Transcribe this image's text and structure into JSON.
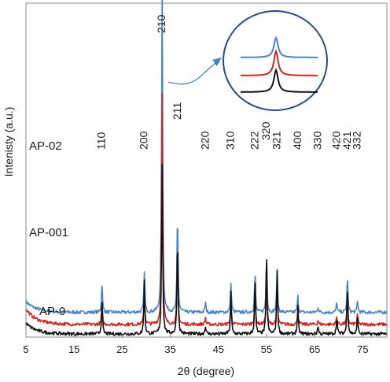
{
  "chart_data": {
    "type": "line",
    "xlabel": "2θ (degree)",
    "ylabel": "Intenisty (a.u.)",
    "xlim": [
      5,
      80
    ],
    "x_ticks": [
      5,
      15,
      25,
      35,
      45,
      55,
      65,
      75
    ],
    "series": [
      {
        "name": "AP-02",
        "color": "#4a86c5",
        "baseline": 0.78,
        "peaks": [
          [
            20.8,
            1.1
          ],
          [
            29.6,
            1.5
          ],
          [
            33.3,
            12.5
          ],
          [
            36.5,
            3.7
          ],
          [
            42.3,
            0.35
          ],
          [
            47.6,
            1.1
          ],
          [
            52.6,
            1.4
          ],
          [
            55.0,
            2.0
          ],
          [
            57.2,
            1.6
          ],
          [
            61.5,
            0.6
          ],
          [
            65.7,
            0.2
          ],
          [
            69.6,
            0.35
          ],
          [
            71.8,
            1.3
          ],
          [
            73.9,
            0.4
          ]
        ]
      },
      {
        "name": "AP-001",
        "color": "#cc2a22",
        "baseline": 0.345,
        "peaks": [
          [
            20.8,
            0.65
          ],
          [
            29.6,
            1.2
          ],
          [
            33.3,
            8.6
          ],
          [
            36.5,
            2.65
          ],
          [
            42.3,
            0.25
          ],
          [
            47.6,
            0.8
          ],
          [
            52.6,
            1.2
          ],
          [
            55.0,
            1.6
          ],
          [
            57.2,
            1.4
          ],
          [
            61.5,
            0.5
          ],
          [
            65.7,
            0.15
          ],
          [
            69.6,
            0.3
          ],
          [
            71.8,
            1.0
          ],
          [
            73.9,
            0.35
          ]
        ]
      },
      {
        "name": "AP-0",
        "color": "#111111",
        "baseline": 0.0,
        "peaks": [
          [
            20.8,
            1.2
          ],
          [
            29.6,
            1.9
          ],
          [
            33.3,
            6.3
          ],
          [
            36.5,
            3.6
          ],
          [
            42.3,
            0.3
          ],
          [
            47.6,
            1.5
          ],
          [
            52.6,
            2.0
          ],
          [
            55.0,
            3.0
          ],
          [
            57.2,
            2.3
          ],
          [
            61.5,
            1.0
          ],
          [
            65.7,
            0.3
          ],
          [
            69.6,
            0.6
          ],
          [
            71.8,
            1.7
          ],
          [
            73.9,
            0.6
          ]
        ]
      }
    ],
    "miller_indices": [
      {
        "label": "110",
        "x": 20.8
      },
      {
        "label": "200",
        "x": 29.6
      },
      {
        "label": "210",
        "x": 33.3
      },
      {
        "label": "211",
        "x": 36.5
      },
      {
        "label": "220",
        "x": 42.3
      },
      {
        "label": "310",
        "x": 47.6
      },
      {
        "label": "222",
        "x": 52.6
      },
      {
        "label": "320",
        "x": 55.0
      },
      {
        "label": "321",
        "x": 57.2
      },
      {
        "label": "400",
        "x": 61.5
      },
      {
        "label": "330",
        "x": 65.7
      },
      {
        "label": "420",
        "x": 69.6
      },
      {
        "label": "421",
        "x": 71.8
      },
      {
        "label": "332",
        "x": 73.9
      }
    ],
    "inset": {
      "description_shape": "circle",
      "border_color": "#2e4a8a",
      "arrow_color": "#4a86c5"
    }
  }
}
